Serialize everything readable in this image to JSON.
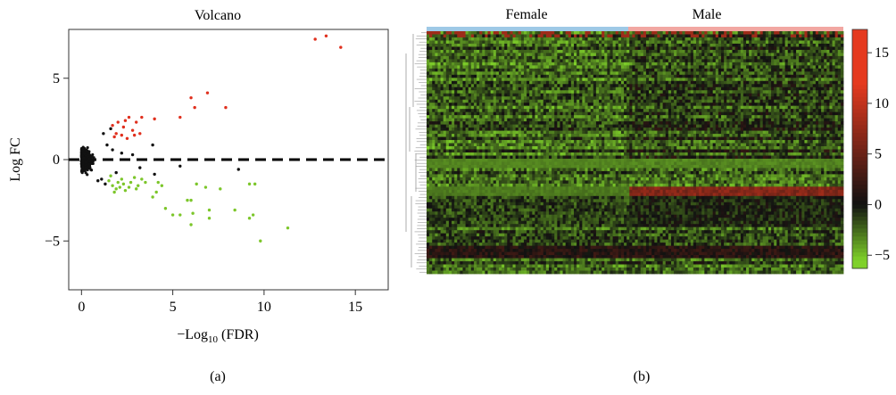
{
  "panels": {
    "a": {
      "caption": "(a)",
      "title": "Volcano",
      "xlabel_main": "−Log",
      "xlabel_sub": "10",
      "xlabel_rest": " (FDR)",
      "ylabel": "Log FC"
    },
    "b": {
      "caption": "(b)",
      "group_female": "Female",
      "group_male": "Male"
    }
  },
  "colors": {
    "up": "#e0301e",
    "down": "#7cc62a",
    "ns": "#111111",
    "heat_low": "#7fd12a",
    "heat_mid": "#111111",
    "heat_high": "#e53a1f",
    "female_bar": "#9ec9e6",
    "male_bar": "#f2a7a2"
  },
  "chart_data": [
    {
      "type": "scatter",
      "title": "Volcano",
      "xlabel": "−Log10 (FDR)",
      "ylabel": "Log FC",
      "xlim": [
        -0.7,
        16.8
      ],
      "ylim": [
        -8,
        8
      ],
      "xticks": [
        0,
        5,
        10,
        15
      ],
      "yticks": [
        -5,
        0,
        5
      ],
      "reference_line": {
        "y": 0,
        "style": "dashed"
      },
      "series": [
        {
          "role": "up",
          "points": [
            [
              13.4,
              7.6
            ],
            [
              12.8,
              7.4
            ],
            [
              14.2,
              6.9
            ],
            [
              6.9,
              4.1
            ],
            [
              6.0,
              3.8
            ],
            [
              6.2,
              3.2
            ],
            [
              7.9,
              3.2
            ],
            [
              5.4,
              2.6
            ],
            [
              2.6,
              2.6
            ],
            [
              3.3,
              2.6
            ],
            [
              2.4,
              2.4
            ],
            [
              3.0,
              2.3
            ],
            [
              2.0,
              2.3
            ],
            [
              4.0,
              2.5
            ],
            [
              1.7,
              2.1
            ],
            [
              2.3,
              2.0
            ],
            [
              2.8,
              1.8
            ],
            [
              1.9,
              1.6
            ],
            [
              3.2,
              1.6
            ],
            [
              1.8,
              1.4
            ],
            [
              2.5,
              1.3
            ],
            [
              2.2,
              1.5
            ],
            [
              2.9,
              1.5
            ]
          ]
        },
        {
          "role": "down",
          "points": [
            [
              9.8,
              -5.0
            ],
            [
              11.3,
              -4.2
            ],
            [
              6.0,
              -4.0
            ],
            [
              9.2,
              -3.6
            ],
            [
              9.4,
              -3.4
            ],
            [
              7.0,
              -3.6
            ],
            [
              5.4,
              -3.4
            ],
            [
              5.0,
              -3.4
            ],
            [
              6.1,
              -3.3
            ],
            [
              8.4,
              -3.1
            ],
            [
              7.0,
              -3.1
            ],
            [
              4.6,
              -3.0
            ],
            [
              5.8,
              -2.5
            ],
            [
              6.0,
              -2.5
            ],
            [
              3.9,
              -2.3
            ],
            [
              4.1,
              -2.0
            ],
            [
              7.6,
              -1.8
            ],
            [
              6.8,
              -1.7
            ],
            [
              6.3,
              -1.5
            ],
            [
              9.2,
              -1.5
            ],
            [
              9.5,
              -1.5
            ],
            [
              2.4,
              -1.9
            ],
            [
              3.1,
              -1.6
            ],
            [
              3.5,
              -1.4
            ],
            [
              1.9,
              -1.8
            ],
            [
              2.7,
              -1.4
            ],
            [
              1.5,
              -1.3
            ],
            [
              4.2,
              -1.4
            ],
            [
              4.4,
              -1.6
            ],
            [
              1.7,
              -1.6
            ],
            [
              2.0,
              -1.4
            ],
            [
              2.3,
              -1.5
            ],
            [
              2.9,
              -1.1
            ],
            [
              1.6,
              -1.0
            ],
            [
              2.2,
              -1.2
            ],
            [
              3.0,
              -1.8
            ],
            [
              1.8,
              -2.0
            ],
            [
              2.6,
              -1.7
            ],
            [
              3.3,
              -1.2
            ],
            [
              2.1,
              -1.7
            ]
          ]
        },
        {
          "role": "ns",
          "points": [
            [
              8.6,
              -0.6
            ],
            [
              5.4,
              -0.4
            ],
            [
              4.0,
              -0.9
            ],
            [
              3.2,
              -0.5
            ],
            [
              3.9,
              0.9
            ],
            [
              1.6,
              1.9
            ],
            [
              1.2,
              1.6
            ],
            [
              1.4,
              0.9
            ],
            [
              1.7,
              0.6
            ],
            [
              2.2,
              0.4
            ],
            [
              2.8,
              0.3
            ],
            [
              1.9,
              -0.8
            ],
            [
              1.1,
              -1.2
            ],
            [
              1.3,
              -1.5
            ],
            [
              0.9,
              -1.3
            ]
          ]
        }
      ]
    },
    {
      "type": "heatmap",
      "groups": [
        "Female",
        "Male"
      ],
      "legend_ticks": [
        15,
        10,
        5,
        0,
        -5
      ],
      "legend_range": [
        -6.3,
        17.3
      ]
    }
  ]
}
